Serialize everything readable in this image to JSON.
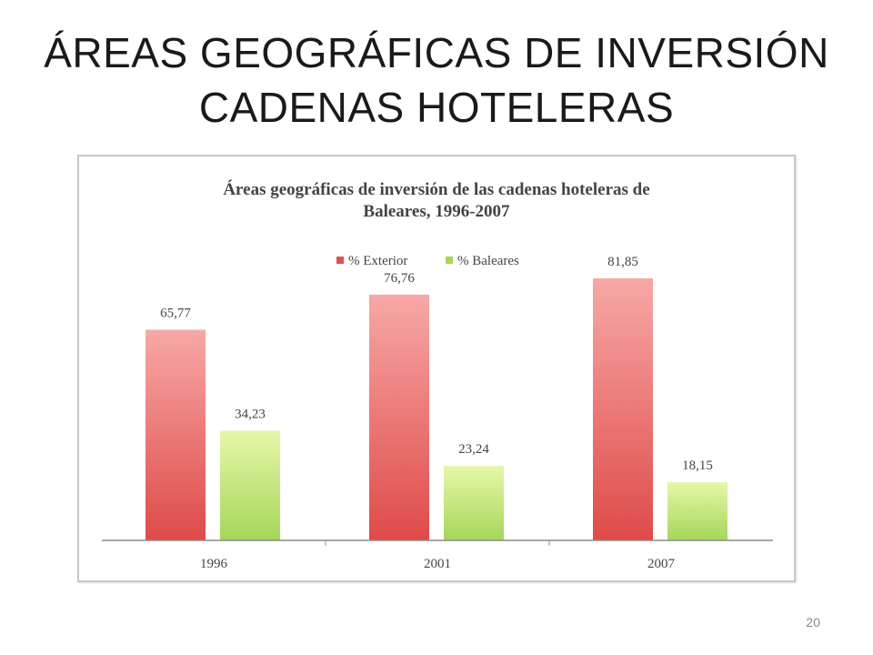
{
  "slide": {
    "title_line1": "ÁREAS GEOGRÁFICAS DE INVERSIÓN",
    "title_line2": "CADENAS HOTELERAS",
    "number": "20"
  },
  "chart_data": {
    "type": "bar",
    "title_line1": "Áreas geográficas de inversión de las cadenas hoteleras de",
    "title_line2": "Baleares, 1996-2007",
    "categories": [
      "1996",
      "2001",
      "2007"
    ],
    "series": [
      {
        "name": "% Exterior",
        "values": [
          65.77,
          76.76,
          81.85
        ],
        "labels": [
          "65,77",
          "76,76",
          "81,85"
        ],
        "color": "#e0504f"
      },
      {
        "name": "% Baleares",
        "values": [
          34.23,
          23.24,
          18.15
        ],
        "labels": [
          "34,23",
          "23,24",
          "18,15"
        ],
        "color": "#a8d85a"
      }
    ],
    "legend_position": "top",
    "grid": false,
    "ylim": [
      0,
      100
    ]
  }
}
